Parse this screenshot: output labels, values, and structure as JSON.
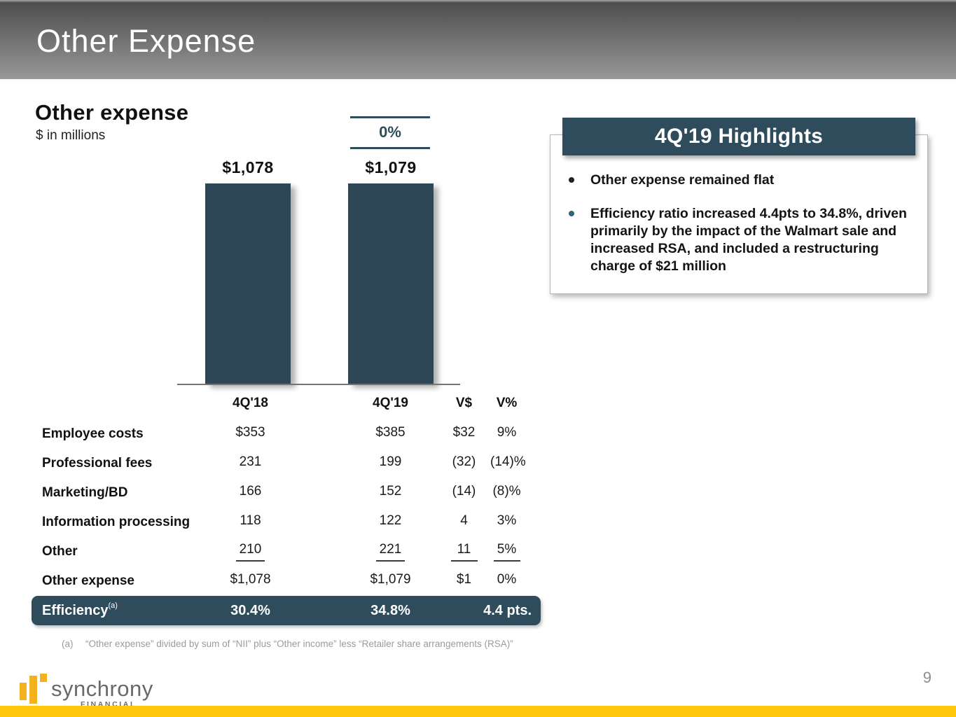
{
  "header": {
    "title": "Other Expense"
  },
  "chart": {
    "heading": "Other expense",
    "subheading": "$ in millions"
  },
  "chart_data": {
    "type": "bar",
    "title": "Other expense",
    "units": "$ in millions",
    "categories": [
      "4Q'18",
      "4Q'19"
    ],
    "values": [
      1078,
      1079
    ],
    "value_labels": [
      "$1,078",
      "$1,079"
    ],
    "variance_label": "0%",
    "ylim": [
      0,
      1079
    ],
    "bar_color": "#2e4756"
  },
  "table": {
    "columns": [
      "4Q'18",
      "4Q'19",
      "V$",
      "V%"
    ],
    "rows": [
      {
        "label": "Employee costs",
        "v1": "$353",
        "v2": "$385",
        "v3": "$32",
        "v4": "9%",
        "underline": false
      },
      {
        "label": "Professional fees",
        "v1": "231",
        "v2": "199",
        "v3": "(32)",
        "v4": "(14)%",
        "underline": false
      },
      {
        "label": "Marketing/BD",
        "v1": "166",
        "v2": "152",
        "v3": "(14)",
        "v4": "(8)%",
        "underline": false
      },
      {
        "label": "Information processing",
        "v1": "118",
        "v2": "122",
        "v3": "4",
        "v4": "3%",
        "underline": false
      },
      {
        "label": "Other",
        "v1": "210",
        "v2": "221",
        "v3": "11",
        "v4": "5%",
        "underline": true
      },
      {
        "label": "Other expense",
        "v1": "$1,078",
        "v2": "$1,079",
        "v3": "$1",
        "v4": "0%",
        "underline": false
      }
    ],
    "efficiency": {
      "label": "Efficiency",
      "superscript": "(a)",
      "v1": "30.4%",
      "v2": "34.8%",
      "v3": "4.4 pts."
    }
  },
  "footnote": {
    "marker": "(a)",
    "text": "“Other expense” divided by sum of “NII” plus “Other income” less “Retailer share arrangements (RSA)”"
  },
  "highlights": {
    "title": "4Q'19 Highlights",
    "bullets": [
      {
        "text": "Other expense remained flat",
        "dot_color": "#222222"
      },
      {
        "text": "Efficiency ratio increased 4.4pts to 34.8%, driven primarily by the impact of the Walmart sale and increased RSA, and included a restructuring charge of $21 million",
        "dot_color": "#2e6378"
      }
    ]
  },
  "footer": {
    "logo_text": "synchrony",
    "logo_subtext": "FINANCIAL",
    "page_number": "9"
  },
  "colors": {
    "accent_teal": "#2f4c5c",
    "bar_teal": "#2e4756",
    "gold": "#ffc60b",
    "logo_gold": "#f2b21d"
  }
}
